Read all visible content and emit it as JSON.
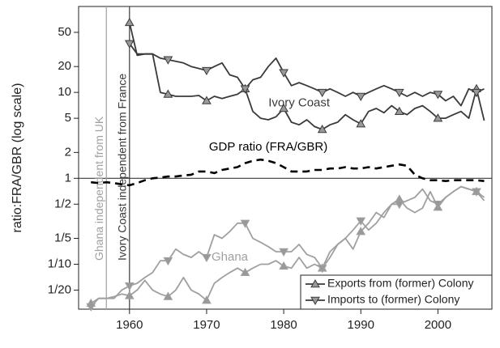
{
  "chart_data": {
    "type": "line",
    "y_label": "ratio:FRA/GBR (log scale)",
    "log_y": true,
    "xlim": [
      1953.4,
      2007
    ],
    "ylim": [
      0.03,
      100
    ],
    "xticks": [
      1960,
      1970,
      1980,
      1990,
      2000
    ],
    "yticks": [
      {
        "value": 0.05,
        "label": "1/20"
      },
      {
        "value": 0.1,
        "label": "1/10"
      },
      {
        "value": 0.2,
        "label": "1/5"
      },
      {
        "value": 0.5,
        "label": "1/2"
      },
      1,
      2,
      5,
      10,
      20,
      50
    ],
    "x": [
      1955,
      1956,
      1957,
      1958,
      1959,
      1960,
      1961,
      1962,
      1963,
      1964,
      1965,
      1966,
      1967,
      1968,
      1969,
      1970,
      1971,
      1972,
      1973,
      1974,
      1975,
      1976,
      1977,
      1978,
      1979,
      1980,
      1981,
      1982,
      1983,
      1984,
      1985,
      1986,
      1987,
      1988,
      1989,
      1990,
      1991,
      1992,
      1993,
      1994,
      1995,
      1996,
      1997,
      1998,
      1999,
      2000,
      2001,
      2002,
      2003,
      2004,
      2005,
      2006
    ],
    "series": [
      {
        "color": "#3a3a3a",
        "marker": "up",
        "marker_every": 5,
        "values": [
          null,
          null,
          null,
          null,
          null,
          65,
          27,
          28,
          28,
          10,
          9.5,
          9,
          9,
          9,
          9.2,
          8,
          9,
          8.5,
          9,
          9.5,
          11,
          6,
          5,
          4.8,
          5.2,
          6.5,
          4.5,
          4.2,
          4.8,
          4,
          3.7,
          4.2,
          4.5,
          5.5,
          4.8,
          4.3,
          6,
          6.5,
          5.8,
          7,
          6,
          5.5,
          6.5,
          7,
          6,
          5,
          5,
          5.5,
          6,
          5,
          11,
          4.7
        ]
      },
      {
        "color": "#3a3a3a",
        "marker": "down",
        "marker_every": 5,
        "values": [
          null,
          null,
          null,
          null,
          null,
          37,
          28,
          28,
          28,
          25,
          24,
          23,
          22,
          20,
          19,
          18,
          20,
          22,
          16,
          15,
          11,
          14,
          15,
          20,
          25,
          17,
          12,
          13,
          12,
          11,
          10,
          11,
          10,
          9,
          10,
          9,
          10,
          11,
          12,
          11,
          10,
          9,
          10,
          9,
          10,
          9.5,
          8,
          9,
          7,
          11,
          10,
          11
        ]
      },
      {
        "color": "#a0a0a0",
        "marker": "up",
        "marker_every": 5,
        "values": [
          0.035,
          0.04,
          0.04,
          0.042,
          0.045,
          0.043,
          0.05,
          0.065,
          0.05,
          0.045,
          0.042,
          0.05,
          0.07,
          0.05,
          0.045,
          0.038,
          0.06,
          0.07,
          0.08,
          0.09,
          0.08,
          0.09,
          0.1,
          0.1,
          0.11,
          0.095,
          0.09,
          0.12,
          0.09,
          0.1,
          0.09,
          0.14,
          0.17,
          0.2,
          0.15,
          0.24,
          0.3,
          0.4,
          0.35,
          0.5,
          0.57,
          0.45,
          0.4,
          0.45,
          0.7,
          0.46,
          0.6,
          0.7,
          0.8,
          0.75,
          0.7,
          0.55
        ]
      },
      {
        "color": "#a0a0a0",
        "marker": "down",
        "marker_every": 5,
        "values": [
          0.032,
          0.04,
          0.04,
          0.04,
          0.05,
          0.056,
          0.06,
          0.07,
          0.08,
          0.11,
          0.11,
          0.15,
          0.13,
          0.12,
          0.14,
          0.12,
          0.22,
          0.2,
          0.24,
          0.3,
          0.3,
          0.2,
          0.18,
          0.16,
          0.14,
          0.14,
          0.14,
          0.17,
          0.13,
          0.12,
          0.09,
          0.12,
          0.17,
          0.2,
          0.25,
          0.32,
          0.25,
          0.3,
          0.4,
          0.5,
          0.5,
          0.55,
          0.6,
          0.75,
          0.55,
          0.5,
          0.6,
          0.7,
          0.8,
          0.75,
          0.7,
          0.6
        ]
      },
      {
        "color": "#000000",
        "dash": true,
        "values": [
          0.9,
          0.88,
          0.9,
          0.88,
          0.85,
          0.83,
          0.88,
          0.95,
          1.0,
          1.02,
          1.05,
          1.05,
          1.08,
          1.1,
          1.2,
          1.2,
          1.15,
          1.25,
          1.3,
          1.35,
          1.5,
          1.6,
          1.65,
          1.6,
          1.5,
          1.35,
          1.2,
          1.2,
          1.2,
          1.25,
          1.25,
          1.3,
          1.3,
          1.35,
          1.3,
          1.3,
          1.35,
          1.3,
          1.35,
          1.4,
          1.45,
          1.4,
          1.1,
          1.0,
          0.95,
          0.95,
          0.93,
          0.95,
          0.95,
          0.95,
          0.95,
          0.93
        ]
      }
    ],
    "hlines": [
      {
        "y": 1,
        "color": "#3a3a3a"
      }
    ],
    "vlines": [
      {
        "x": 1957,
        "color": "#a0a0a0",
        "label": "Ghana independent from UK"
      },
      {
        "x": 1960,
        "color": "#3a3a3a",
        "label": "Ivory Coast independent from France"
      }
    ],
    "annotations": [
      {
        "text": "Ivory Coast",
        "x": 1982,
        "y": 7.5,
        "color": "#3a3a3a"
      },
      {
        "text": "Ghana",
        "x": 1973,
        "y": 0.12,
        "color": "#a0a0a0"
      },
      {
        "text": "GDP ratio (FRA/GBR)",
        "x": 1978,
        "y": 2.3,
        "color": "#000000"
      }
    ],
    "legend": {
      "position": "lower right",
      "entries": [
        {
          "name": "Exports from (former) Colony",
          "marker": "up"
        },
        {
          "name": "Imports to (former) Colony",
          "marker": "down"
        }
      ]
    }
  }
}
